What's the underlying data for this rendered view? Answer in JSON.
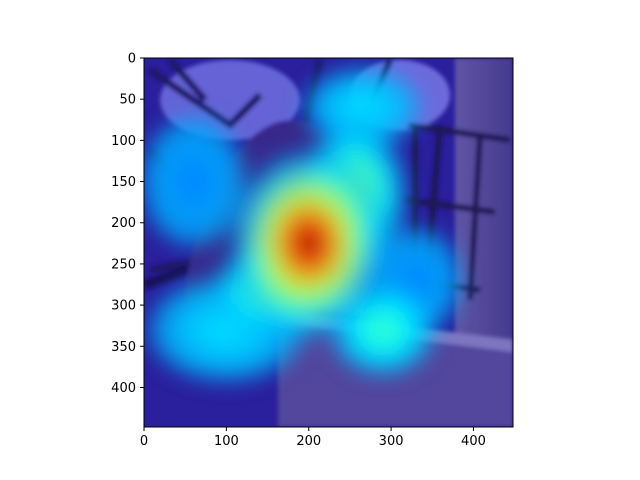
{
  "chart_data": {
    "type": "heatmap",
    "title": "",
    "xlabel": "",
    "ylabel": "",
    "xlim": [
      0,
      448
    ],
    "ylim": [
      448,
      0
    ],
    "x_ticks": [
      0,
      100,
      200,
      300,
      400
    ],
    "y_ticks": [
      0,
      50,
      100,
      150,
      200,
      250,
      300,
      350,
      400
    ],
    "colormap": "jet",
    "overlay": "activation heatmap over photograph of a wren perched on a wooden feeder",
    "grid": false,
    "legend": "none",
    "hotspots": [
      {
        "x": 200,
        "y": 225,
        "sx": 58,
        "sy": 70,
        "intensity": 1.0
      },
      {
        "x": 165,
        "y": 280,
        "sx": 50,
        "sy": 35,
        "intensity": 0.6
      },
      {
        "x": 255,
        "y": 165,
        "sx": 40,
        "sy": 55,
        "intensity": 0.55
      },
      {
        "x": 265,
        "y": 60,
        "sx": 45,
        "sy": 30,
        "intensity": 0.35
      },
      {
        "x": 100,
        "y": 330,
        "sx": 60,
        "sy": 40,
        "intensity": 0.35
      },
      {
        "x": 290,
        "y": 330,
        "sx": 40,
        "sy": 35,
        "intensity": 0.45
      },
      {
        "x": 60,
        "y": 150,
        "sx": 40,
        "sy": 50,
        "intensity": 0.25
      },
      {
        "x": 330,
        "y": 270,
        "sx": 35,
        "sy": 40,
        "intensity": 0.25
      }
    ],
    "colors": {
      "background_low": "#2a1f9c",
      "axis": "#000000"
    }
  }
}
